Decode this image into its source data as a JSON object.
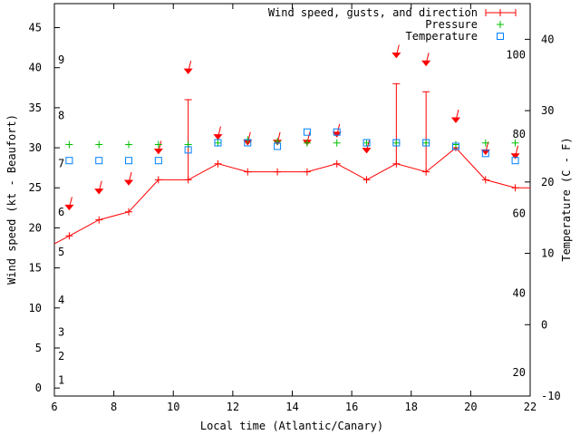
{
  "chart_data": {
    "type": "line",
    "xlabel": "Local time (Atlantic/Canary)",
    "ylabel_left": "Wind speed (kt - Beaufort)",
    "ylabel_right": "Temperature (C - F)",
    "x_range": [
      6,
      22
    ],
    "x_ticks": [
      6,
      8,
      10,
      12,
      14,
      16,
      18,
      20,
      22
    ],
    "y_range": [
      -1,
      48
    ],
    "y_ticks": [
      0,
      5,
      10,
      15,
      20,
      25,
      30,
      35,
      40,
      45
    ],
    "y2_range": [
      -10,
      45
    ],
    "y2_ticks": [
      -10,
      0,
      10,
      20,
      30,
      40
    ],
    "beaufort_ticks": [
      {
        "label": "1",
        "kt": 1
      },
      {
        "label": "2",
        "kt": 4
      },
      {
        "label": "3",
        "kt": 7
      },
      {
        "label": "4",
        "kt": 11
      },
      {
        "label": "5",
        "kt": 17
      },
      {
        "label": "6",
        "kt": 22
      },
      {
        "label": "7",
        "kt": 28
      },
      {
        "label": "8",
        "kt": 34
      },
      {
        "label": "9",
        "kt": 41
      }
    ],
    "fahrenheit_ticks": [
      {
        "label": "20",
        "c": -6.7
      },
      {
        "label": "40",
        "c": 4.4
      },
      {
        "label": "60",
        "c": 15.6
      },
      {
        "label": "80",
        "c": 26.7
      },
      {
        "label": "100",
        "c": 37.8
      }
    ],
    "legend": {
      "wind": "Wind speed, gusts, and direction",
      "pressure": "Pressure",
      "temperature": "Temperature"
    },
    "legend_position": "top-right",
    "colors": {
      "wind": "#ff0000",
      "pressure": "#00c000",
      "temperature": "#0080ff"
    },
    "series": [
      {
        "name": "Wind speed, gusts, and direction",
        "x": [
          5.5,
          6.5,
          7.5,
          8.5,
          9.5,
          10.5,
          11.5,
          12.5,
          13.5,
          14.5,
          15.5,
          16.5,
          17.5,
          18.5,
          19.5,
          20.5,
          21.5,
          22.5
        ],
        "values": [
          18,
          19,
          21,
          22,
          26,
          26,
          28,
          27,
          27,
          27,
          28,
          26,
          28,
          27,
          30,
          26,
          25,
          25
        ],
        "gusts": [
          null,
          null,
          null,
          null,
          null,
          36,
          null,
          null,
          null,
          null,
          null,
          null,
          38,
          37,
          null,
          null,
          null,
          null
        ],
        "direction_arrow_kt": [
          null,
          22.5,
          24.5,
          25.6,
          29.5,
          39.5,
          31.3,
          30.6,
          30.6,
          30.6,
          31.6,
          29.6,
          41.5,
          40.5,
          33.4,
          29.4,
          28.9,
          null
        ]
      },
      {
        "name": "Pressure",
        "x": [
          6.5,
          7.5,
          8.5,
          9.5,
          10.5,
          11.5,
          12.5,
          13.5,
          14.5,
          15.5,
          16.5,
          17.5,
          18.5,
          19.5,
          20.5,
          21.5
        ],
        "values_kt_axis": [
          30.4,
          30.4,
          30.4,
          30.4,
          30.4,
          30.6,
          31.0,
          30.8,
          30.6,
          30.6,
          30.6,
          30.6,
          30.6,
          30.4,
          30.6,
          30.6
        ]
      },
      {
        "name": "Temperature",
        "x": [
          6.5,
          7.5,
          8.5,
          9.5,
          10.5,
          11.5,
          12.5,
          13.5,
          14.5,
          15.5,
          16.5,
          17.5,
          18.5,
          19.5,
          20.5,
          21.5
        ],
        "values": [
          23,
          23,
          23,
          23,
          24.5,
          25.5,
          25.5,
          25,
          27,
          27,
          25.5,
          25.5,
          25.5,
          25,
          24,
          23
        ]
      }
    ]
  }
}
